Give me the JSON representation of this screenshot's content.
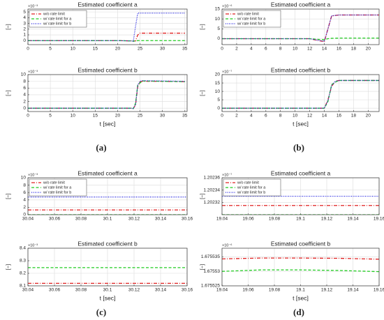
{
  "panel_labels": [
    "(a)",
    "(b)",
    "(c)",
    "(d)"
  ],
  "chart_data": [
    {
      "type": "line",
      "title": "Estimated coefficient a",
      "ylabel": "[−]",
      "y_exponent": "×10⁻³",
      "x": [
        0,
        5,
        10,
        15,
        20,
        23,
        23.5,
        24,
        24.5,
        25,
        30,
        35
      ],
      "xlim": [
        0,
        35.5
      ],
      "xticks": [
        0,
        5,
        10,
        15,
        20,
        25,
        30,
        35
      ],
      "ylim": [
        -0.7,
        5.5
      ],
      "yticks": [
        0,
        1,
        2,
        3,
        4,
        5
      ],
      "grid": true,
      "legend": "upper left",
      "series": [
        {
          "name": "w/o rate limit",
          "color": "#e02020",
          "linestyle": "dashdot",
          "values": [
            0,
            0,
            0,
            0,
            0,
            -0.05,
            -0.1,
            -0.05,
            1.0,
            1.3,
            1.3,
            1.3
          ]
        },
        {
          "name": "w/ rate limit for a",
          "color": "#22cc22",
          "linestyle": "dashed",
          "values": [
            0,
            0,
            0,
            0,
            0,
            -0.05,
            -0.1,
            -0.05,
            0,
            0,
            0,
            0
          ]
        },
        {
          "name": "w/ rate limit for b",
          "color": "#2020e0",
          "linestyle": "dotted",
          "values": [
            0,
            0,
            0,
            0,
            0,
            -0.05,
            -0.1,
            2.5,
            4.8,
            4.8,
            4.8,
            4.8
          ]
        }
      ]
    },
    {
      "type": "line",
      "title": "Estimated coefficient b",
      "ylabel": "[−]",
      "xlabel": "t [sec]",
      "y_exponent": "×10⁻³",
      "x": [
        0,
        5,
        10,
        15,
        20,
        23,
        23.5,
        24,
        24.5,
        25,
        25.5,
        30,
        35
      ],
      "xlim": [
        0,
        35.5
      ],
      "xticks": [
        0,
        5,
        10,
        15,
        20,
        25,
        30,
        35
      ],
      "ylim": [
        -1,
        10
      ],
      "yticks": [
        0,
        2,
        4,
        6,
        8,
        10
      ],
      "grid": true,
      "series": [
        {
          "color": "#e02020",
          "linestyle": "dashdot",
          "values": [
            0,
            0,
            0,
            0,
            0,
            0,
            -0.1,
            1,
            6.5,
            7.8,
            8,
            8,
            7.9
          ]
        },
        {
          "color": "#22cc22",
          "linestyle": "dashed",
          "values": [
            0,
            0,
            0,
            0,
            0,
            0,
            -0.1,
            1.5,
            7,
            7.5,
            8.1,
            8,
            7.9
          ]
        },
        {
          "color": "#2020e0",
          "linestyle": "dotted",
          "values": [
            0,
            0,
            0,
            0,
            0,
            0,
            -0.1,
            1,
            7,
            8,
            8.2,
            8.1,
            8
          ]
        }
      ]
    },
    {
      "type": "line",
      "title": "Estimated coefficient a",
      "ylabel": "[−]",
      "y_exponent": "×10⁻⁶",
      "x": [
        0,
        2,
        4,
        6,
        8,
        10,
        12,
        13,
        14,
        14.5,
        15,
        16,
        18,
        21.5
      ],
      "xlim": [
        0,
        21.5
      ],
      "xticks": [
        0,
        2,
        4,
        6,
        8,
        10,
        12,
        14,
        16,
        18,
        20
      ],
      "ylim": [
        -3,
        15
      ],
      "yticks": [
        0,
        5,
        10,
        15
      ],
      "grid": true,
      "legend": "upper left",
      "series": [
        {
          "name": "w/o rate limit",
          "color": "#e02020",
          "linestyle": "dashdot",
          "values": [
            0,
            0,
            0,
            0,
            0,
            0,
            0,
            -0.8,
            -1.5,
            5,
            11.5,
            12,
            12,
            12
          ]
        },
        {
          "name": "w/ rate limit for a",
          "color": "#22cc22",
          "linestyle": "dashed",
          "values": [
            0,
            0,
            0,
            0,
            0,
            0,
            0,
            -0.3,
            -0.5,
            0,
            0.2,
            0.3,
            0.3,
            0.3
          ]
        },
        {
          "name": "w/ rate limit for b",
          "color": "#2020e0",
          "linestyle": "dotted",
          "values": [
            0,
            0,
            0,
            0,
            0,
            0,
            0,
            -0.7,
            -1.3,
            5,
            11.6,
            12,
            12,
            12
          ]
        }
      ]
    },
    {
      "type": "line",
      "title": "Estimated coefficient b",
      "ylabel": "[−]",
      "xlabel": "t [sec]",
      "y_exponent": "×10⁻⁷",
      "x": [
        0,
        2,
        4,
        6,
        8,
        10,
        12,
        14,
        14.5,
        15,
        15.5,
        16,
        18,
        21.5
      ],
      "xlim": [
        0,
        21.5
      ],
      "xticks": [
        0,
        2,
        4,
        6,
        8,
        10,
        12,
        14,
        16,
        18,
        20
      ],
      "ylim": [
        -2,
        20
      ],
      "yticks": [
        0,
        5,
        10,
        15,
        20
      ],
      "grid": true,
      "series": [
        {
          "color": "#e02020",
          "linestyle": "dashdot",
          "values": [
            0,
            0,
            0,
            0,
            0,
            0,
            0,
            0,
            5,
            13,
            16,
            16.5,
            16.5,
            16.5
          ]
        },
        {
          "color": "#22cc22",
          "linestyle": "dashed",
          "values": [
            0,
            0,
            0,
            0,
            0,
            0,
            0,
            0,
            4,
            14,
            15.5,
            16.5,
            16.5,
            16.5
          ]
        },
        {
          "color": "#2020e0",
          "linestyle": "dotted",
          "values": [
            0,
            0,
            0,
            0,
            0,
            0,
            0,
            0,
            4.5,
            13.5,
            16,
            16.5,
            16.5,
            16.5
          ]
        }
      ]
    },
    {
      "type": "line",
      "title": "Estimated coefficient a",
      "ylabel": "[−]",
      "y_exponent": "×10⁻³",
      "x": [
        30.04,
        30.16
      ],
      "xlim": [
        30.04,
        30.16
      ],
      "xticks": [
        30.04,
        30.06,
        30.08,
        30.1,
        30.12,
        30.14,
        30.16
      ],
      "ylim": [
        0,
        10
      ],
      "yticks": [
        0,
        2,
        4,
        6,
        8,
        10
      ],
      "grid": true,
      "legend": "upper left",
      "series": [
        {
          "name": "w/o rate limit",
          "color": "#e02020",
          "linestyle": "dashdot",
          "values": [
            1.3,
            1.3
          ]
        },
        {
          "name": "w/ rate limit for a",
          "color": "#22cc22",
          "linestyle": "dashed",
          "values": [
            0,
            0
          ]
        },
        {
          "name": "w/ rate limit for b",
          "color": "#2020e0",
          "linestyle": "dotted",
          "values": [
            4.8,
            4.8
          ]
        }
      ]
    },
    {
      "type": "line",
      "title": "Estimated coefficient b",
      "ylabel": "[−]",
      "xlabel": "t [sec]",
      "y_exponent": "×10⁻³",
      "x": [
        30.04,
        30.16
      ],
      "xlim": [
        30.04,
        30.16
      ],
      "xticks": [
        30.04,
        30.06,
        30.08,
        30.1,
        30.12,
        30.14,
        30.16
      ],
      "ylim": [
        8.1,
        8.4
      ],
      "yticks": [
        8.1,
        8.2,
        8.3,
        8.4
      ],
      "grid": true,
      "series": [
        {
          "color": "#e02020",
          "linestyle": "dashdot",
          "values": [
            8.12,
            8.12
          ]
        },
        {
          "color": "#22cc22",
          "linestyle": "dashed",
          "values": [
            8.245,
            8.245
          ]
        }
      ]
    },
    {
      "type": "line",
      "title": "Estimated coefficient a",
      "ylabel": "[−]",
      "y_exponent": "×10⁻⁷",
      "x": [
        19.04,
        19.16
      ],
      "xlim": [
        19.04,
        19.16
      ],
      "xticks": [
        19.04,
        19.06,
        19.08,
        19.1,
        19.12,
        19.14,
        19.16
      ],
      "ylim": [
        1.2023,
        1.20236
      ],
      "yticks": [
        1.20232,
        1.20234,
        1.20236
      ],
      "grid": true,
      "legend": "upper left",
      "series": [
        {
          "name": "w/o rate limit",
          "color": "#e02020",
          "linestyle": "dashdot",
          "values": [
            1.202315,
            1.202315
          ]
        },
        {
          "name": "w/ rate limit for a",
          "color": "#22cc22",
          "linestyle": "dashed",
          "values": [
            1.2023,
            1.2023
          ]
        },
        {
          "name": "w/ rate limit for b",
          "color": "#2020e0",
          "linestyle": "dotted",
          "values": [
            1.20233,
            1.20233
          ]
        }
      ]
    },
    {
      "type": "line",
      "title": "Estimated coefficient b",
      "ylabel": "[−]",
      "xlabel": "t [sec]",
      "y_exponent": "×10⁻⁶",
      "x": [
        19.04,
        19.07,
        19.1,
        19.13,
        19.16
      ],
      "xlim": [
        19.04,
        19.16
      ],
      "xticks": [
        19.04,
        19.06,
        19.08,
        19.1,
        19.12,
        19.14,
        19.16
      ],
      "ylim": [
        1.675525,
        1.675538
      ],
      "yticks": [
        1.675525,
        1.67553,
        1.675535
      ],
      "grid": true,
      "series": [
        {
          "color": "#e02020",
          "linestyle": "dashdot",
          "values": [
            1.6755343,
            1.6755346,
            1.6755346,
            1.6755345,
            1.6755342
          ]
        },
        {
          "color": "#22cc22",
          "linestyle": "dashed",
          "values": [
            1.67553,
            1.6755305,
            1.6755305,
            1.6755303,
            1.6755299
          ]
        }
      ]
    }
  ]
}
